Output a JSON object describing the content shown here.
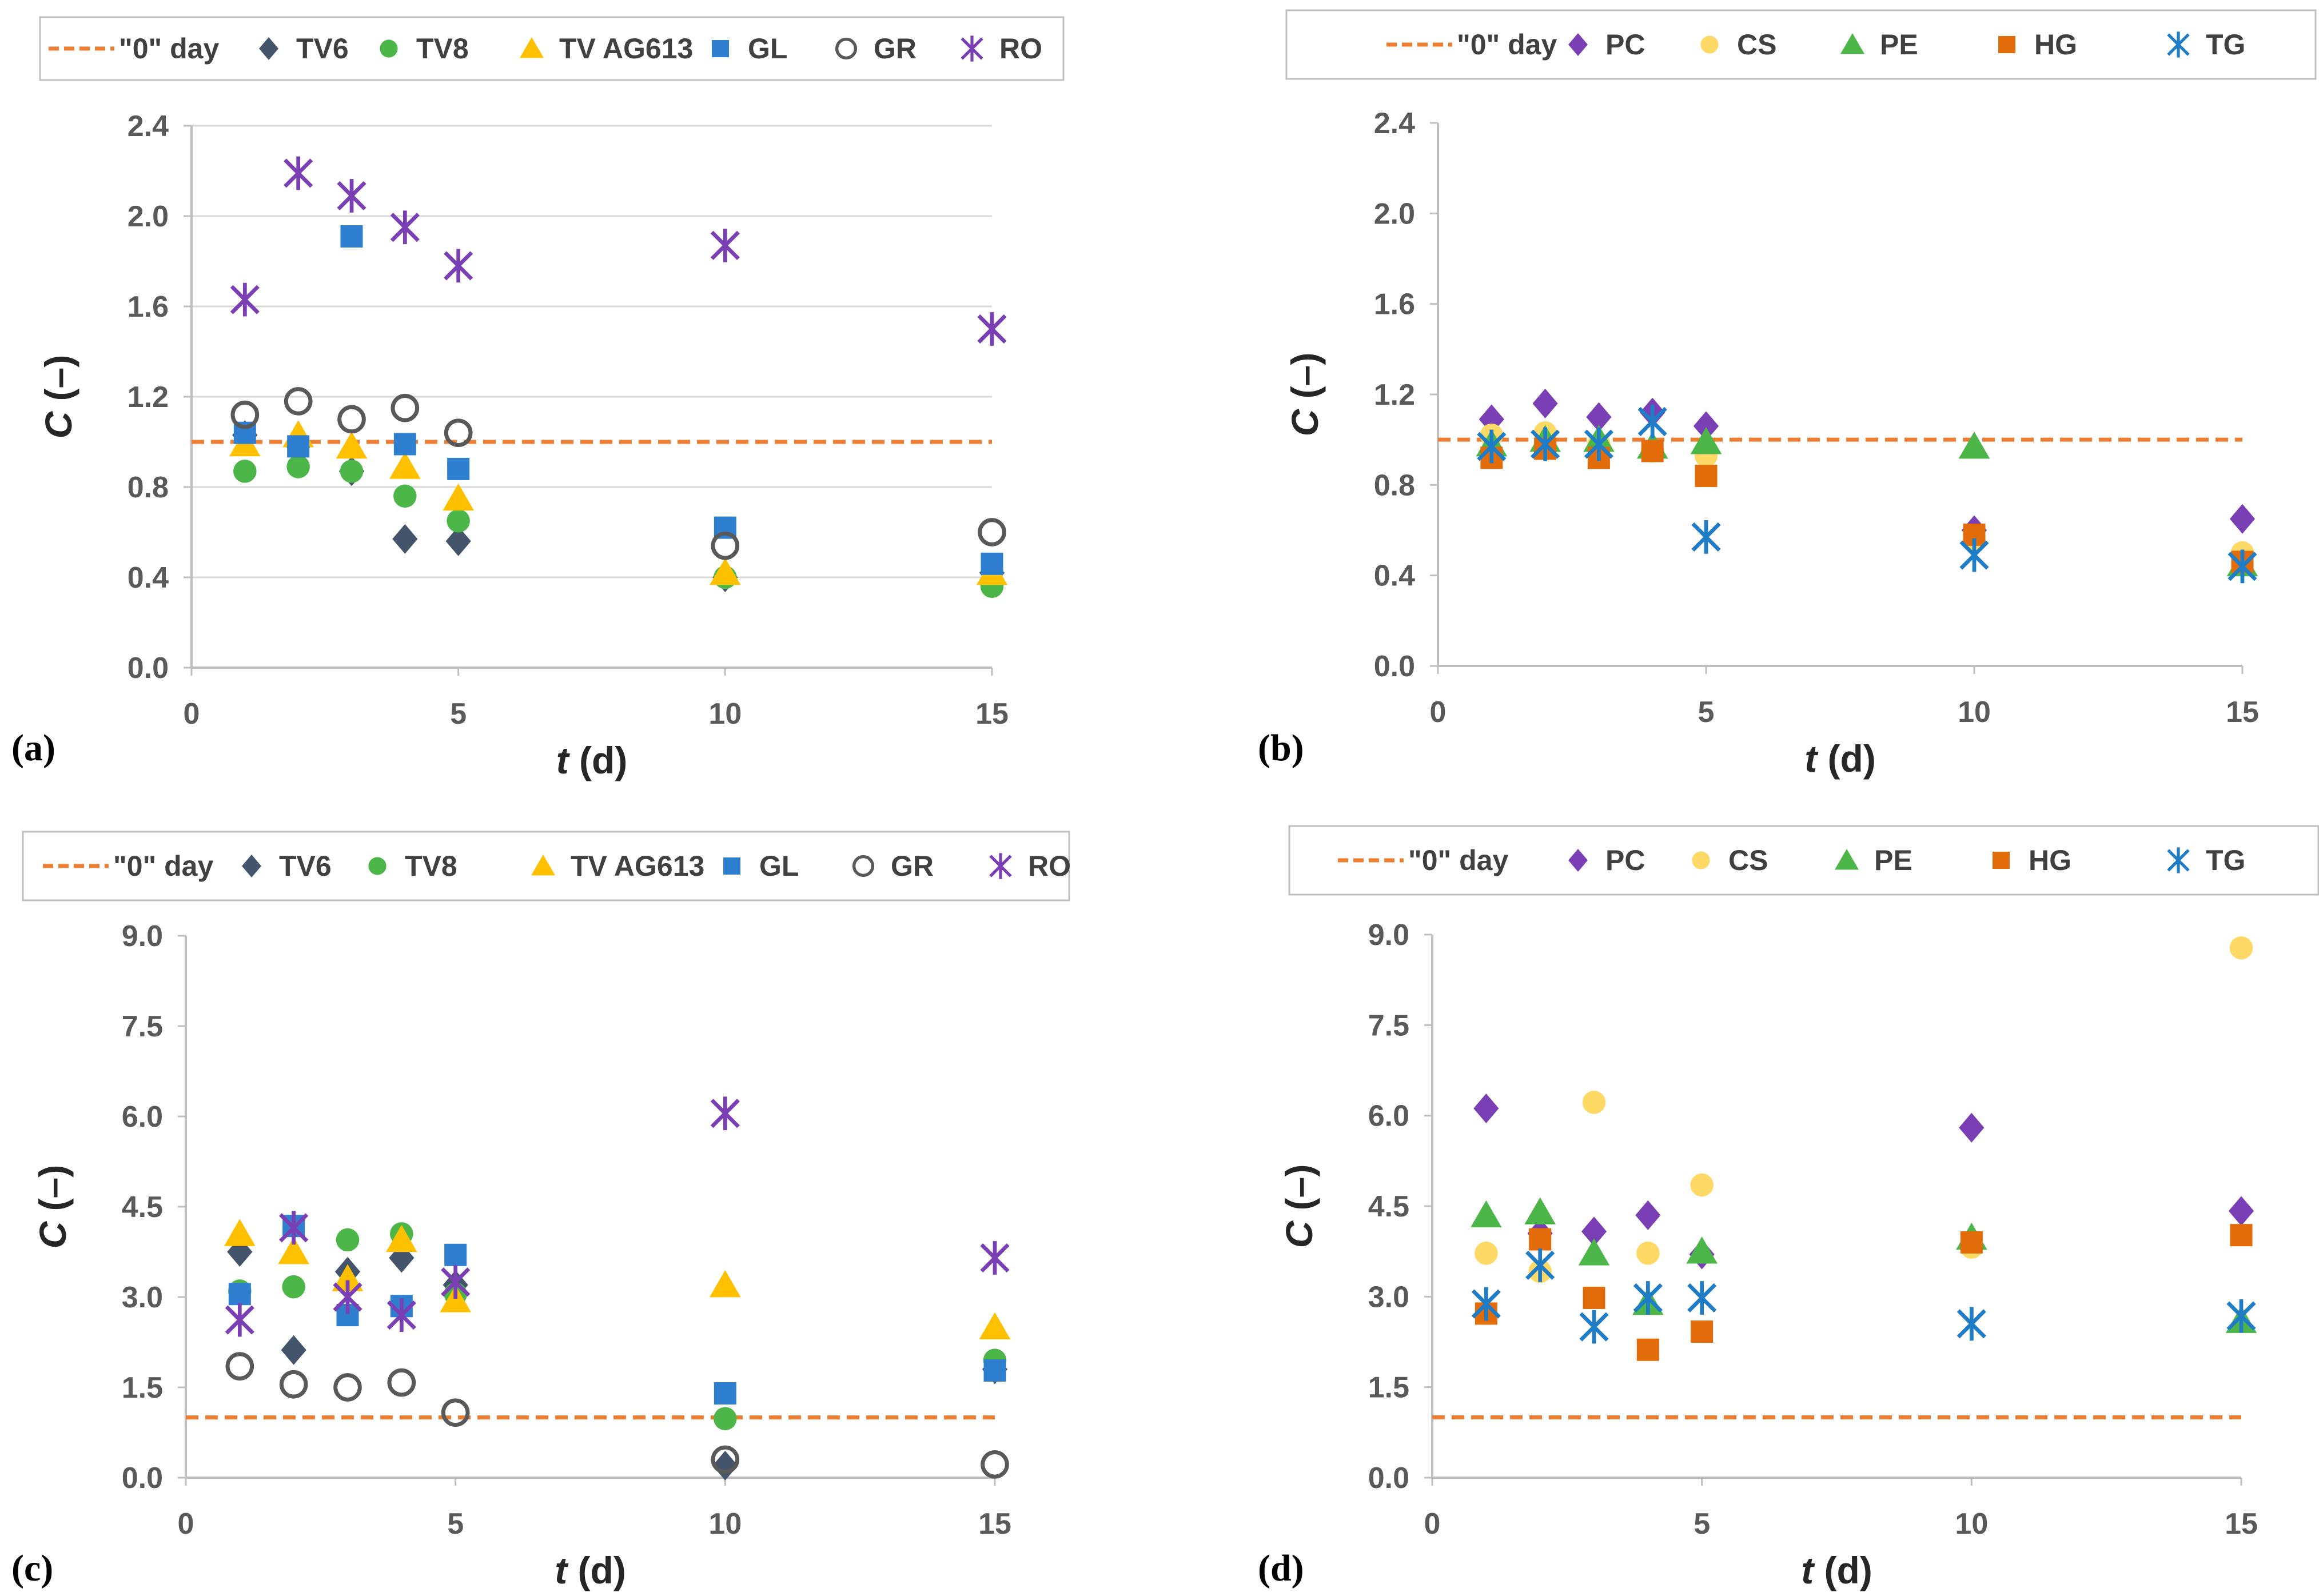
{
  "chart_data": [
    {
      "id": "a",
      "type": "scatter",
      "panel_label": "(a)",
      "xlabel_var": "t",
      "xlabel_unit": " (d)",
      "ylabel_var": "C",
      "ylabel_unit": " (–)",
      "xlim": [
        0,
        15
      ],
      "ylim": [
        0,
        2.4
      ],
      "xticks": [
        "0",
        "5",
        "10",
        "15"
      ],
      "yticks": [
        "0.0",
        "0.4",
        "0.8",
        "1.2",
        "1.6",
        "2.0",
        "2.4"
      ],
      "grid": true,
      "reference": {
        "name": "\"0\" day",
        "y": 1.0,
        "color": "#ED7D31"
      },
      "legend_position": "top",
      "series": [
        {
          "name": "TV6",
          "marker": "diamond",
          "color": "#44546A",
          "x": [
            1,
            2,
            3,
            4,
            5,
            10,
            15
          ],
          "y": [
            1.03,
            0.98,
            0.87,
            0.57,
            0.56,
            0.4,
            0.42
          ]
        },
        {
          "name": "TV8",
          "marker": "circle",
          "color": "#4CB748",
          "x": [
            1,
            2,
            3,
            4,
            5,
            10,
            15
          ],
          "y": [
            0.87,
            0.89,
            0.87,
            0.76,
            0.65,
            0.4,
            0.36
          ]
        },
        {
          "name": "TV AG613",
          "marker": "triangle",
          "color": "#FFC000",
          "x": [
            1,
            2,
            3,
            4,
            5,
            10,
            15
          ],
          "y": [
            0.99,
            1.03,
            0.98,
            0.89,
            0.75,
            0.42,
            0.42
          ]
        },
        {
          "name": "GL",
          "marker": "square",
          "color": "#2E7FD0",
          "x": [
            1,
            2,
            3,
            4,
            5,
            10,
            15
          ],
          "y": [
            1.04,
            0.98,
            1.91,
            0.99,
            0.88,
            0.62,
            0.46
          ]
        },
        {
          "name": "GR",
          "marker": "open-circle",
          "color": "#595959",
          "x": [
            1,
            2,
            3,
            4,
            5,
            10,
            15
          ],
          "y": [
            1.12,
            1.18,
            1.1,
            1.15,
            1.04,
            0.54,
            0.6
          ]
        },
        {
          "name": "RO",
          "marker": "star",
          "color": "#7B3FB5",
          "x": [
            1,
            2,
            3,
            4,
            5,
            10,
            15
          ],
          "y": [
            1.63,
            2.19,
            2.09,
            1.95,
            1.78,
            1.87,
            1.5
          ]
        }
      ]
    },
    {
      "id": "b",
      "type": "scatter",
      "panel_label": "(b)",
      "xlabel_var": "t",
      "xlabel_unit": " (d)",
      "ylabel_var": "C",
      "ylabel_unit": " (–)",
      "xlim": [
        0,
        15
      ],
      "ylim": [
        0,
        2.4
      ],
      "xticks": [
        "0",
        "5",
        "10",
        "15"
      ],
      "yticks": [
        "0.0",
        "0.4",
        "0.8",
        "1.2",
        "1.6",
        "2.0",
        "2.4"
      ],
      "grid": false,
      "reference": {
        "name": "\"0\" day",
        "y": 1.0,
        "color": "#ED7D31"
      },
      "legend_position": "top",
      "series": [
        {
          "name": "PC",
          "marker": "diamond",
          "color": "#7B3FB5",
          "x": [
            1,
            2,
            3,
            4,
            5,
            10,
            15
          ],
          "y": [
            1.09,
            1.16,
            1.1,
            1.12,
            1.06,
            0.6,
            0.65
          ]
        },
        {
          "name": "CS",
          "marker": "circle",
          "color": "#FFD966",
          "x": [
            1,
            2,
            3,
            4,
            5,
            10,
            15
          ],
          "y": [
            1.02,
            1.03,
            0.98,
            0.95,
            0.93,
            0.55,
            0.5
          ]
        },
        {
          "name": "PE",
          "marker": "triangle",
          "color": "#4CB748",
          "x": [
            1,
            2,
            3,
            4,
            5,
            10,
            15
          ],
          "y": [
            0.98,
            1.0,
            1.0,
            0.97,
            0.99,
            0.97,
            0.45
          ]
        },
        {
          "name": "HG",
          "marker": "square",
          "color": "#E36C0A",
          "x": [
            1,
            2,
            3,
            4,
            5,
            10,
            15
          ],
          "y": [
            0.92,
            0.96,
            0.92,
            0.95,
            0.84,
            0.58,
            0.46
          ]
        },
        {
          "name": "TG",
          "marker": "star",
          "color": "#1F7DC8",
          "x": [
            1,
            2,
            3,
            4,
            5,
            10,
            15
          ],
          "y": [
            0.97,
            0.98,
            0.98,
            1.08,
            0.57,
            0.49,
            0.44
          ]
        }
      ]
    },
    {
      "id": "c",
      "type": "scatter",
      "panel_label": "(c)",
      "xlabel_var": "t",
      "xlabel_unit": " (d)",
      "ylabel_var": "C",
      "ylabel_unit": " (–)",
      "xlim": [
        0,
        15
      ],
      "ylim": [
        0,
        9.0
      ],
      "xticks": [
        "0",
        "5",
        "10",
        "15"
      ],
      "yticks": [
        "0.0",
        "1.5",
        "3.0",
        "4.5",
        "6.0",
        "7.5",
        "9.0"
      ],
      "grid": false,
      "reference": {
        "name": "\"0\" day",
        "y": 1.0,
        "color": "#ED7D31"
      },
      "legend_position": "top",
      "series": [
        {
          "name": "TV6",
          "marker": "diamond",
          "color": "#44546A",
          "x": [
            1,
            2,
            3,
            4,
            5,
            10,
            15
          ],
          "y": [
            3.75,
            2.12,
            3.42,
            3.65,
            3.2,
            0.2,
            1.8
          ]
        },
        {
          "name": "TV8",
          "marker": "circle",
          "color": "#4CB748",
          "x": [
            1,
            2,
            3,
            4,
            5,
            10,
            15
          ],
          "y": [
            3.1,
            3.17,
            3.95,
            4.05,
            3.05,
            0.98,
            1.95
          ]
        },
        {
          "name": "TV AG613",
          "marker": "triangle",
          "color": "#FFC000",
          "x": [
            1,
            2,
            3,
            4,
            5,
            10,
            15
          ],
          "y": [
            4.05,
            3.75,
            3.3,
            3.95,
            2.95,
            3.2,
            2.5
          ]
        },
        {
          "name": "GL",
          "marker": "square",
          "color": "#2E7FD0",
          "x": [
            1,
            2,
            3,
            4,
            5,
            10,
            15
          ],
          "y": [
            3.05,
            4.18,
            2.7,
            2.85,
            3.7,
            1.4,
            1.78
          ]
        },
        {
          "name": "GR",
          "marker": "open-circle",
          "color": "#595959",
          "x": [
            1,
            2,
            3,
            4,
            5,
            10,
            15
          ],
          "y": [
            1.85,
            1.55,
            1.5,
            1.58,
            1.08,
            0.3,
            0.22
          ]
        },
        {
          "name": "RO",
          "marker": "star",
          "color": "#7B3FB5",
          "x": [
            1,
            2,
            3,
            4,
            5,
            10,
            15
          ],
          "y": [
            2.62,
            4.15,
            3.0,
            2.7,
            3.25,
            6.05,
            3.65
          ]
        }
      ]
    },
    {
      "id": "d",
      "type": "scatter",
      "panel_label": "(d)",
      "xlabel_var": "t",
      "xlabel_unit": " (d)",
      "ylabel_var": "C",
      "ylabel_unit": " (–)",
      "xlim": [
        0,
        15
      ],
      "ylim": [
        0,
        9.0
      ],
      "xticks": [
        "0",
        "5",
        "10",
        "15"
      ],
      "yticks": [
        "0.0",
        "1.5",
        "3.0",
        "4.5",
        "6.0",
        "7.5",
        "9.0"
      ],
      "grid": false,
      "reference": {
        "name": "\"0\" day",
        "y": 1.0,
        "color": "#ED7D31"
      },
      "legend_position": "top",
      "series": [
        {
          "name": "PC",
          "marker": "diamond",
          "color": "#7B3FB5",
          "x": [
            1,
            2,
            3,
            4,
            5,
            10,
            15
          ],
          "y": [
            6.12,
            4.05,
            4.08,
            4.35,
            3.7,
            5.8,
            4.42
          ]
        },
        {
          "name": "CS",
          "marker": "circle",
          "color": "#FFD966",
          "x": [
            1,
            2,
            3,
            4,
            5,
            10,
            15
          ],
          "y": [
            3.72,
            3.42,
            6.22,
            3.72,
            4.85,
            3.82,
            8.78
          ]
        },
        {
          "name": "PE",
          "marker": "triangle",
          "color": "#4CB748",
          "x": [
            1,
            2,
            3,
            4,
            5,
            10,
            15
          ],
          "y": [
            4.35,
            4.4,
            3.72,
            2.9,
            3.75,
            3.98,
            2.6
          ]
        },
        {
          "name": "HG",
          "marker": "square",
          "color": "#E36C0A",
          "x": [
            1,
            2,
            3,
            4,
            5,
            10,
            15
          ],
          "y": [
            2.72,
            3.95,
            2.98,
            2.12,
            2.42,
            3.9,
            4.02
          ]
        },
        {
          "name": "TG",
          "marker": "star",
          "color": "#1F7DC8",
          "x": [
            1,
            2,
            3,
            4,
            5,
            10,
            15
          ],
          "y": [
            2.88,
            3.52,
            2.5,
            2.98,
            2.98,
            2.55,
            2.68
          ]
        }
      ]
    }
  ]
}
